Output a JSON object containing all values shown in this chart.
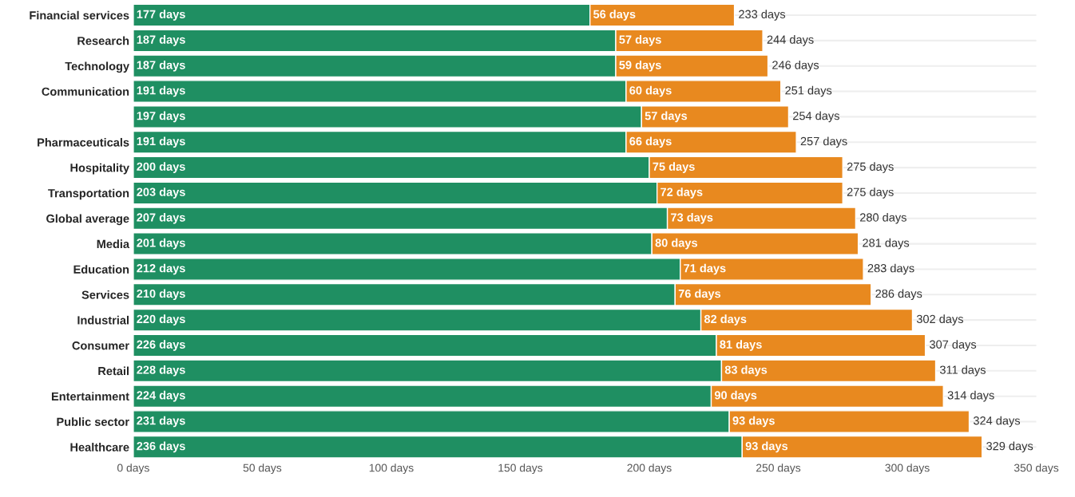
{
  "chart_data": {
    "type": "bar",
    "orientation": "horizontal",
    "stacked": true,
    "categories": [
      "Financial services",
      "Research",
      "Technology",
      "Communication",
      null,
      "Pharmaceuticals",
      "Hospitality",
      "Transportation",
      "Global average",
      "Media",
      "Education",
      "Services",
      "Industrial",
      "Consumer",
      "Retail",
      "Entertainment",
      "Public sector",
      "Healthcare"
    ],
    "series": [
      {
        "color": "#1f8f62",
        "values": [
          177,
          187,
          187,
          191,
          197,
          191,
          200,
          203,
          207,
          201,
          212,
          210,
          220,
          226,
          228,
          224,
          231,
          236
        ],
        "value_labels": [
          "177 days",
          "187 days",
          "187 days",
          "191 days",
          "197 days",
          "191 days",
          "200 days",
          "203 days",
          "207 days",
          "201 days",
          "212 days",
          "210 days",
          "220 days",
          "226 days",
          "228 days",
          "224 days",
          "231 days",
          "236 days"
        ]
      },
      {
        "color": "#e8891f",
        "values": [
          56,
          57,
          59,
          60,
          57,
          66,
          75,
          72,
          73,
          80,
          71,
          76,
          82,
          81,
          83,
          90,
          93,
          93
        ],
        "value_labels": [
          "56 days",
          "57 days",
          "59 days",
          "60 days",
          "57 days",
          "66 days",
          "75 days",
          "72 days",
          "73 days",
          "80 days",
          "71 days",
          "76 days",
          "82 days",
          "81 days",
          "83 days",
          "90 days",
          "93 days",
          "93 days"
        ]
      }
    ],
    "totals": [
      "233 days",
      "244 days",
      "246 days",
      "251 days",
      "254 days",
      "257 days",
      "275 days",
      "275 days",
      "280 days",
      "281 days",
      "283 days",
      "286 days",
      "302 days",
      "307 days",
      "311 days",
      "314 days",
      "324 days",
      "329 days"
    ],
    "xlim": [
      0,
      350
    ],
    "xticks": [
      {
        "value": 0,
        "label": "0 days"
      },
      {
        "value": 50,
        "label": "50 days"
      },
      {
        "value": 100,
        "label": "100 days"
      },
      {
        "value": 150,
        "label": "150 days"
      },
      {
        "value": 200,
        "label": "200 days"
      },
      {
        "value": 250,
        "label": "250 days"
      },
      {
        "value": 300,
        "label": "300 days"
      },
      {
        "value": 350,
        "label": "350 days"
      }
    ],
    "grid": "y"
  }
}
